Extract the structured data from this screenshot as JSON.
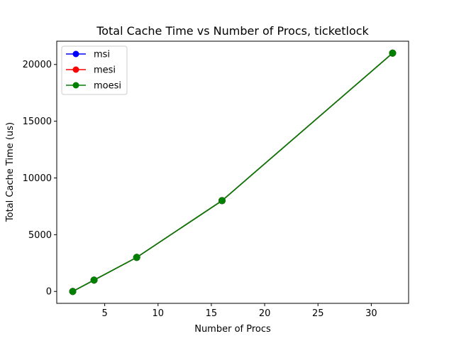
{
  "chart_data": {
    "type": "line",
    "title": "Total Cache Time vs Number of Procs, ticketlock",
    "xlabel": "Number of Procs",
    "ylabel": "Total Cache Time (us)",
    "xlim": [
      0.5,
      33.5
    ],
    "ylim": [
      -1050,
      22050
    ],
    "xticks": [
      5,
      10,
      15,
      20,
      25,
      30
    ],
    "yticks": [
      0,
      5000,
      10000,
      15000,
      20000
    ],
    "x": [
      2,
      4,
      8,
      16,
      32
    ],
    "series": [
      {
        "name": "msi",
        "color": "#0000ff",
        "values": [
          0,
          1000,
          3000,
          8000,
          21000
        ]
      },
      {
        "name": "mesi",
        "color": "#ff0000",
        "values": [
          0,
          1000,
          3000,
          8000,
          21000
        ]
      },
      {
        "name": "moesi",
        "color": "#008000",
        "values": [
          0,
          1000,
          3000,
          8000,
          21000
        ]
      }
    ],
    "legend_position": "upper-left",
    "grid": false
  }
}
